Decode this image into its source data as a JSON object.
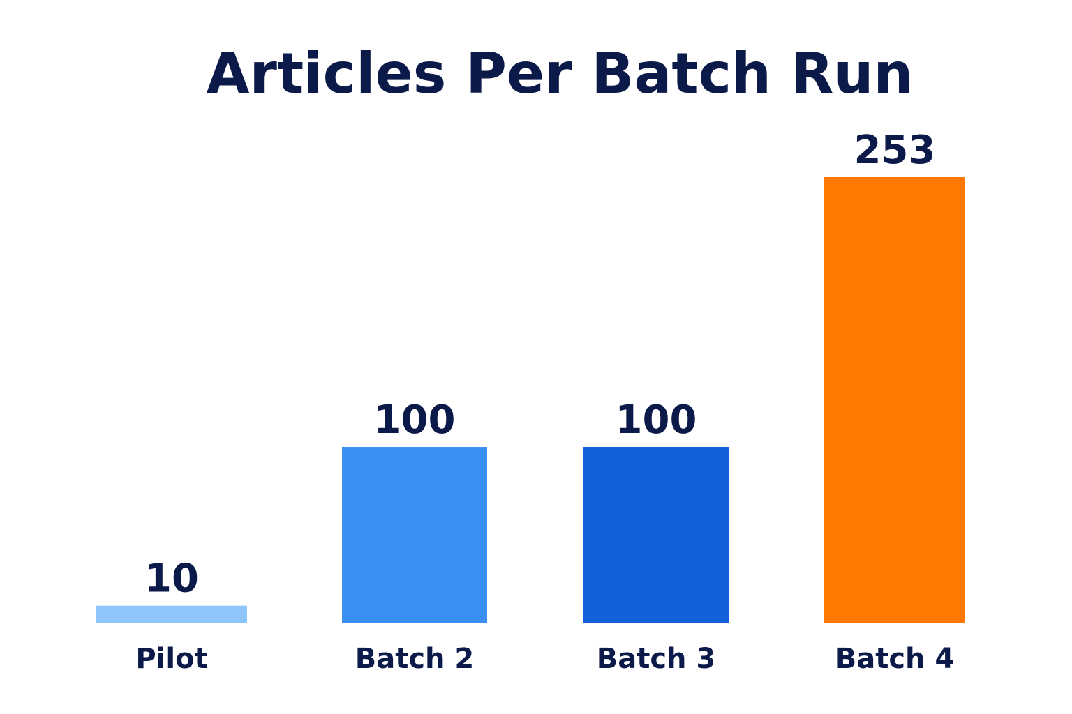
{
  "chart_data": {
    "type": "bar",
    "title": "Articles Per Batch Run",
    "categories": [
      "Pilot",
      "Batch 2",
      "Batch 3",
      "Batch 4"
    ],
    "values": [
      10,
      100,
      100,
      253
    ],
    "bar_colors": [
      "#8ec6fb",
      "#3b8ff0",
      "#1361da",
      "#ff7800"
    ],
    "text_color": "#0b1a48",
    "ylim": [
      0,
      253
    ],
    "grid": false,
    "legend": "none"
  }
}
